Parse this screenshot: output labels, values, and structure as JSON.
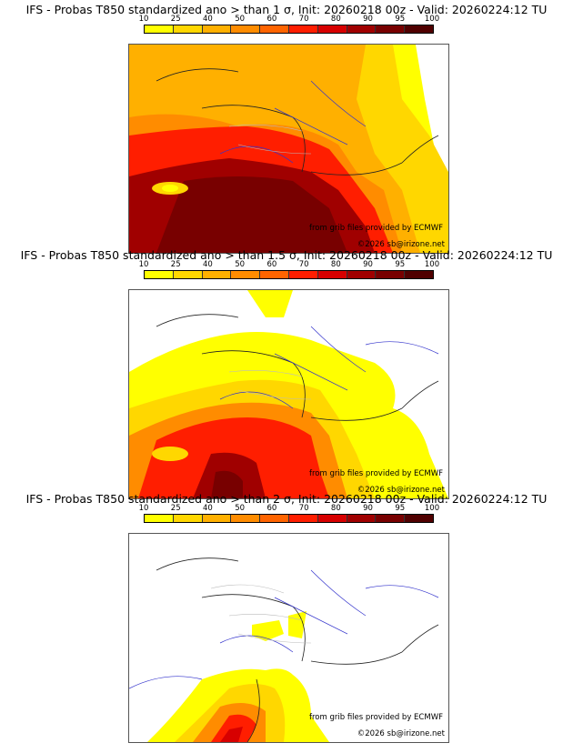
{
  "legend": {
    "ticks": [
      "10",
      "25",
      "40",
      "50",
      "60",
      "70",
      "80",
      "90",
      "95",
      "100"
    ],
    "colors": [
      "#ffff00",
      "#ffd700",
      "#ffb000",
      "#ff8c00",
      "#ff6400",
      "#ff1e00",
      "#d70000",
      "#a00000",
      "#780000",
      "#500000"
    ]
  },
  "panels": [
    {
      "title": "IFS - Probas T850  standardized ano > than 1 σ, Init: 20260218 00z - Valid: 20260224:12 TU",
      "credit_source": "from grib files provided by ECMWF",
      "credit_copyright": "©2026 sb@irizone.net",
      "threshold": "1 σ"
    },
    {
      "title": "IFS - Probas T850  standardized ano > than 1.5 σ, Init: 20260218 00z - Valid: 20260224:12 TU",
      "credit_source": "from grib files provided by ECMWF",
      "credit_copyright": "©2026 sb@irizone.net",
      "threshold": "1.5 σ"
    },
    {
      "title": "IFS - Probas T850  standardized ano > than 2 σ, Init: 20260218 00z - Valid: 20260224:12 TU",
      "credit_source": "from grib files provided by ECMWF",
      "credit_copyright": "©2026 sb@irizone.net",
      "threshold": "2 σ"
    }
  ]
}
